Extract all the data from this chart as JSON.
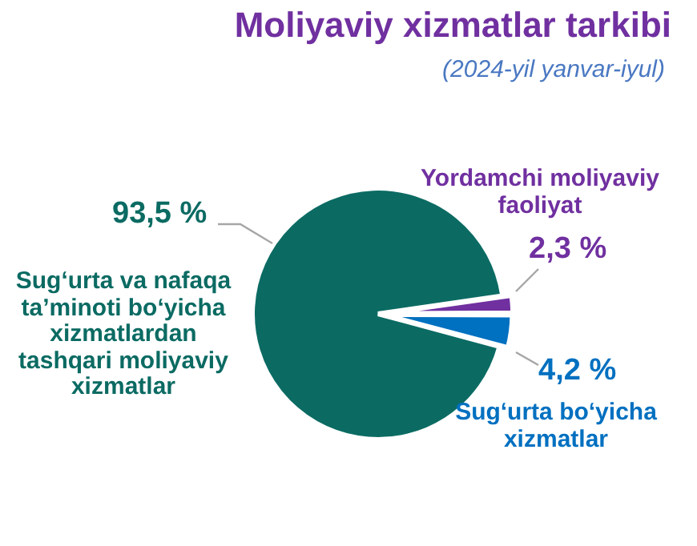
{
  "chart_data": {
    "type": "pie",
    "title": "Moliyaviy xizmatlar tarkibi",
    "subtitle": "(2024-yil yanvar-iyul)",
    "categories": [
      "Yordamchi moliyaviy faoliyat",
      "Sug‘urta bo‘yicha xizmatlar",
      "Sug‘urta va nafaqa ta’minoti bo‘yicha xizmatlardan tashqari moliyaviy xizmatlar"
    ],
    "values": [
      2.3,
      4.2,
      93.5
    ],
    "colors": [
      "#7030a0",
      "#0070c0",
      "#0b6b63"
    ],
    "value_labels": [
      "2,3 %",
      "4,2 %",
      "93,5 %"
    ]
  }
}
